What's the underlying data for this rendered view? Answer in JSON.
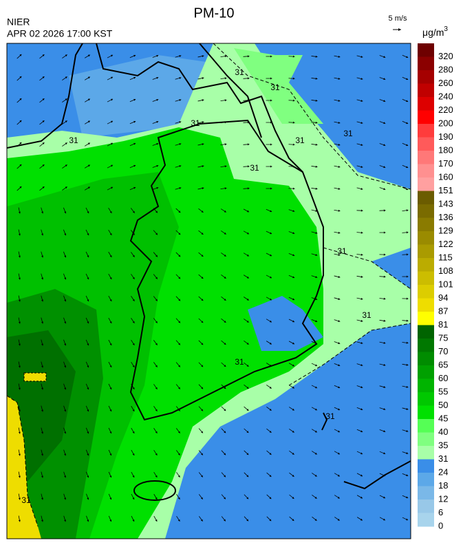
{
  "header": {
    "title": "PM-10",
    "agency": "NIER",
    "timestamp": "APR 02 2026 17:00 KST"
  },
  "wind_scale": {
    "label": "5 m/s"
  },
  "legend": {
    "unit": "μg/m",
    "unit_exponent": "3",
    "levels": [
      {
        "label": "320",
        "color": "#6e0000"
      },
      {
        "label": "280",
        "color": "#8b0000"
      },
      {
        "label": "260",
        "color": "#a50000"
      },
      {
        "label": "240",
        "color": "#c00000"
      },
      {
        "label": "220",
        "color": "#dd0000"
      },
      {
        "label": "200",
        "color": "#ff0000"
      },
      {
        "label": "190",
        "color": "#ff3c3c"
      },
      {
        "label": "180",
        "color": "#ff5a5a"
      },
      {
        "label": "170",
        "color": "#ff7878"
      },
      {
        "label": "160",
        "color": "#ff9090"
      },
      {
        "label": "151",
        "color": "#ffa0a0"
      },
      {
        "label": "143",
        "color": "#6b5c00"
      },
      {
        "label": "136",
        "color": "#7a6b00"
      },
      {
        "label": "129",
        "color": "#8a7b00"
      },
      {
        "label": "122",
        "color": "#9a8b00"
      },
      {
        "label": "115",
        "color": "#aa9b00"
      },
      {
        "label": "108",
        "color": "#bbac00"
      },
      {
        "label": "101",
        "color": "#ccbd00"
      },
      {
        "label": "94",
        "color": "#dccd00"
      },
      {
        "label": "87",
        "color": "#eedd00"
      },
      {
        "label": "81",
        "color": "#ffff00"
      },
      {
        "label": "75",
        "color": "#006400"
      },
      {
        "label": "70",
        "color": "#007800"
      },
      {
        "label": "65",
        "color": "#008c00"
      },
      {
        "label": "60",
        "color": "#00a000"
      },
      {
        "label": "55",
        "color": "#00b400"
      },
      {
        "label": "50",
        "color": "#00c800"
      },
      {
        "label": "45",
        "color": "#00e000"
      },
      {
        "label": "40",
        "color": "#55ff55"
      },
      {
        "label": "35",
        "color": "#80ff80"
      },
      {
        "label": "31",
        "color": "#a8ffa8"
      },
      {
        "label": "24",
        "color": "#3a8ee8"
      },
      {
        "label": "18",
        "color": "#5ca8e8"
      },
      {
        "label": "12",
        "color": "#7ab8e8"
      },
      {
        "label": "6",
        "color": "#98c8e8"
      },
      {
        "label": "0",
        "color": "#a8d4ec"
      }
    ]
  },
  "contour_labels": [
    "31",
    "31",
    "31",
    "31",
    "31",
    "31",
    "31",
    "31",
    "31",
    "31",
    "31",
    "31"
  ]
}
